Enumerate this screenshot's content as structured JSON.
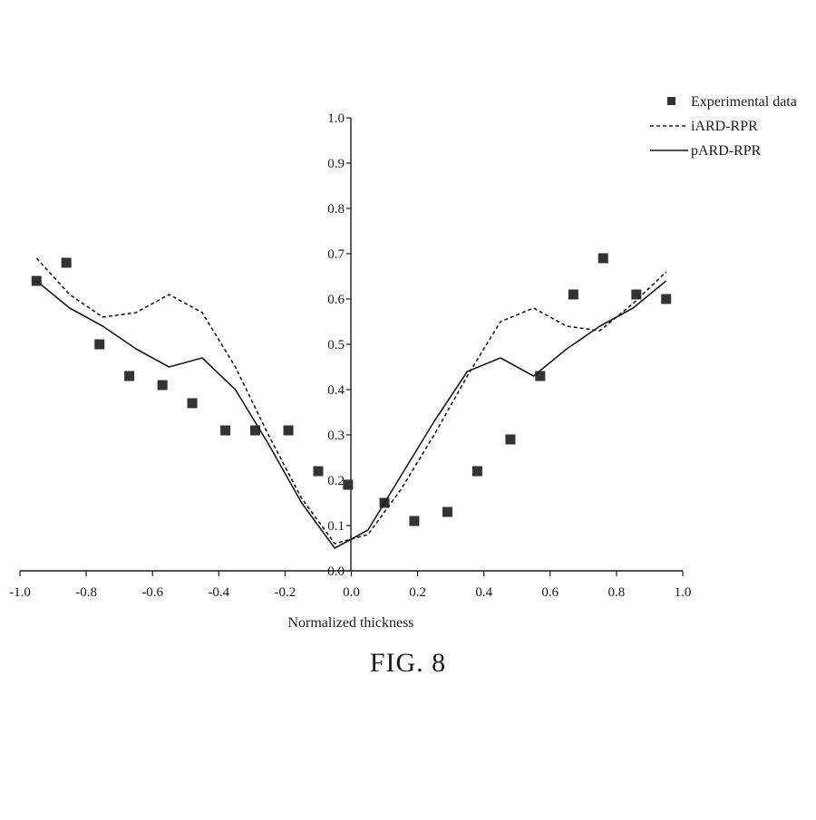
{
  "figure": {
    "caption": "FIG. 8"
  },
  "chart_data": {
    "type": "scatter",
    "title": "",
    "xlabel": "Normalized thickness",
    "ylabel": "",
    "xlim": [
      -1.0,
      1.0
    ],
    "ylim": [
      0.0,
      1.0
    ],
    "x_ticks": [
      "-1.0",
      "-0.8",
      "-0.6",
      "-0.4",
      "-0.2",
      "0.0",
      "0.2",
      "0.4",
      "0.6",
      "0.8",
      "1.0"
    ],
    "y_ticks": [
      "0.0",
      "0.1",
      "0.2",
      "0.3",
      "0.4",
      "0.5",
      "0.6",
      "0.7",
      "0.8",
      "0.9",
      "1.0"
    ],
    "grid": false,
    "legend_position": "top-right",
    "series": [
      {
        "name": "Experimental data",
        "kind": "scatter",
        "marker": "square",
        "color": "#333333",
        "x": [
          -0.95,
          -0.86,
          -0.76,
          -0.67,
          -0.57,
          -0.48,
          -0.38,
          -0.29,
          -0.19,
          -0.1,
          -0.01,
          0.1,
          0.19,
          0.29,
          0.38,
          0.48,
          0.57,
          0.67,
          0.76,
          0.86,
          0.95
        ],
        "y": [
          0.64,
          0.68,
          0.5,
          0.43,
          0.41,
          0.37,
          0.31,
          0.31,
          0.31,
          0.22,
          0.19,
          0.15,
          0.11,
          0.13,
          0.22,
          0.29,
          0.43,
          0.61,
          0.69,
          0.61,
          0.6
        ]
      },
      {
        "name": "iARD-RPR",
        "kind": "line",
        "style": "dashed",
        "color": "#1a1a1a",
        "x": [
          -0.95,
          -0.85,
          -0.75,
          -0.65,
          -0.55,
          -0.45,
          -0.35,
          -0.25,
          -0.15,
          -0.05,
          0.05,
          0.15,
          0.25,
          0.35,
          0.45,
          0.55,
          0.65,
          0.75,
          0.85,
          0.95
        ],
        "y": [
          0.69,
          0.61,
          0.56,
          0.57,
          0.61,
          0.57,
          0.45,
          0.3,
          0.16,
          0.06,
          0.08,
          0.18,
          0.3,
          0.43,
          0.55,
          0.58,
          0.54,
          0.53,
          0.59,
          0.66
        ]
      },
      {
        "name": "pARD-RPR",
        "kind": "line",
        "style": "solid",
        "color": "#1a1a1a",
        "x": [
          -0.95,
          -0.85,
          -0.75,
          -0.65,
          -0.55,
          -0.45,
          -0.35,
          -0.25,
          -0.15,
          -0.05,
          0.05,
          0.15,
          0.25,
          0.35,
          0.45,
          0.55,
          0.65,
          0.75,
          0.85,
          0.95
        ],
        "y": [
          0.64,
          0.58,
          0.54,
          0.49,
          0.45,
          0.47,
          0.4,
          0.28,
          0.15,
          0.05,
          0.09,
          0.21,
          0.33,
          0.44,
          0.47,
          0.43,
          0.49,
          0.54,
          0.58,
          0.64
        ]
      }
    ]
  }
}
